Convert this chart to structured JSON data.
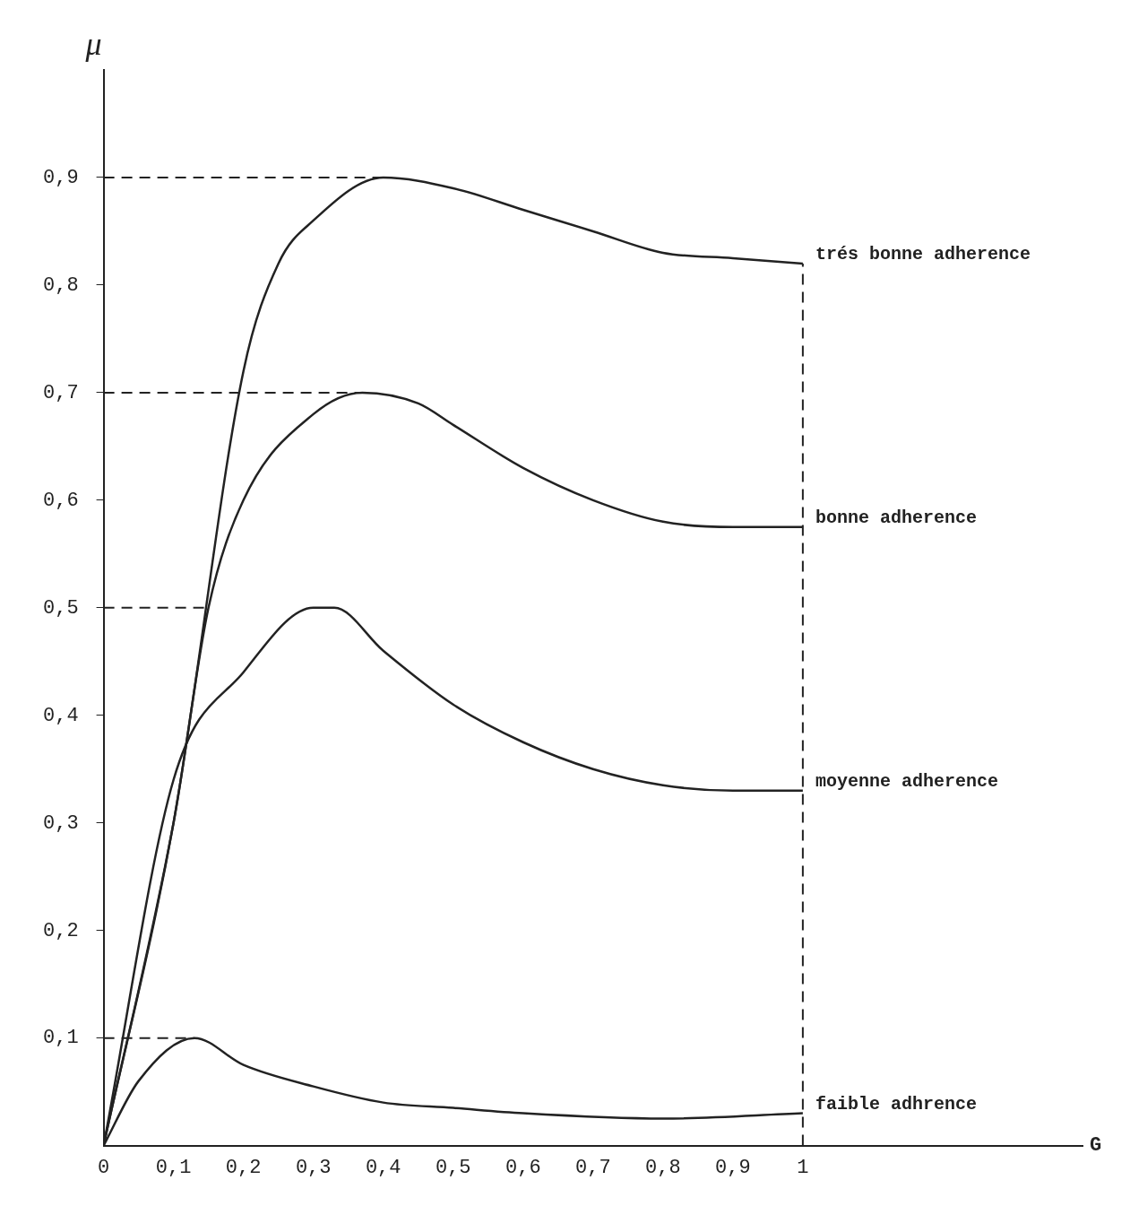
{
  "chart_data": {
    "type": "line",
    "xlabel": "G",
    "ylabel": "μ",
    "xlim": [
      0,
      1.4
    ],
    "ylim": [
      0,
      1
    ],
    "xticks": [
      {
        "value": 0,
        "label": "0"
      },
      {
        "value": 0.1,
        "label": "0,1"
      },
      {
        "value": 0.2,
        "label": "0,2"
      },
      {
        "value": 0.3,
        "label": "0,3"
      },
      {
        "value": 0.4,
        "label": "0,4"
      },
      {
        "value": 0.5,
        "label": "0,5"
      },
      {
        "value": 0.6,
        "label": "0,6"
      },
      {
        "value": 0.7,
        "label": "0,7"
      },
      {
        "value": 0.8,
        "label": "0,8"
      },
      {
        "value": 0.9,
        "label": "0,9"
      },
      {
        "value": 1,
        "label": "1"
      }
    ],
    "yticks": [
      {
        "value": 0.1,
        "label": "0,1"
      },
      {
        "value": 0.2,
        "label": "0,2"
      },
      {
        "value": 0.3,
        "label": "0,3"
      },
      {
        "value": 0.4,
        "label": "0,4"
      },
      {
        "value": 0.5,
        "label": "0,5"
      },
      {
        "value": 0.6,
        "label": "0,6"
      },
      {
        "value": 0.7,
        "label": "0,7"
      },
      {
        "value": 0.8,
        "label": "0,8"
      },
      {
        "value": 0.9,
        "label": "0,9"
      }
    ],
    "series": [
      {
        "name": "trés bonne adherence",
        "color": "#222222",
        "x": [
          0,
          0.1,
          0.2,
          0.25,
          0.3,
          0.4,
          0.5,
          0.6,
          0.7,
          0.8,
          0.9,
          1
        ],
        "values": [
          0,
          0.3,
          0.72,
          0.82,
          0.86,
          0.9,
          0.89,
          0.87,
          0.85,
          0.83,
          0.825,
          0.82
        ]
      },
      {
        "name": "bonne adherence",
        "color": "#222222",
        "x": [
          0,
          0.1,
          0.15,
          0.2,
          0.3,
          0.37,
          0.45,
          0.5,
          0.6,
          0.7,
          0.8,
          0.9,
          1
        ],
        "values": [
          0,
          0.3,
          0.5,
          0.6,
          0.68,
          0.7,
          0.69,
          0.67,
          0.63,
          0.6,
          0.58,
          0.575,
          0.575
        ]
      },
      {
        "name": "moyenne adherence",
        "color": "#222222",
        "x": [
          0,
          0.1,
          0.2,
          0.3,
          0.33,
          0.4,
          0.5,
          0.6,
          0.7,
          0.8,
          0.9,
          1
        ],
        "values": [
          0,
          0.34,
          0.44,
          0.5,
          0.5,
          0.46,
          0.41,
          0.375,
          0.35,
          0.335,
          0.33,
          0.33
        ]
      },
      {
        "name": "faible adhrence",
        "color": "#222222",
        "x": [
          0,
          0.05,
          0.13,
          0.2,
          0.3,
          0.4,
          0.5,
          0.6,
          0.8,
          1
        ],
        "values": [
          0,
          0.06,
          0.1,
          0.075,
          0.055,
          0.04,
          0.035,
          0.03,
          0.025,
          0.03
        ]
      }
    ],
    "ref_lines": [
      {
        "axis": "y",
        "value": 0.9,
        "line_style": "dashed"
      },
      {
        "axis": "y",
        "value": 0.7,
        "line_style": "dashed"
      },
      {
        "axis": "y",
        "value": 0.5,
        "line_style": "dashed"
      },
      {
        "axis": "y",
        "value": 0.1,
        "line_style": "dashed"
      },
      {
        "axis": "x",
        "value": 1,
        "line_style": "dashed"
      }
    ],
    "grid": false,
    "legend": false,
    "marker": "none",
    "line_style": "solid"
  }
}
